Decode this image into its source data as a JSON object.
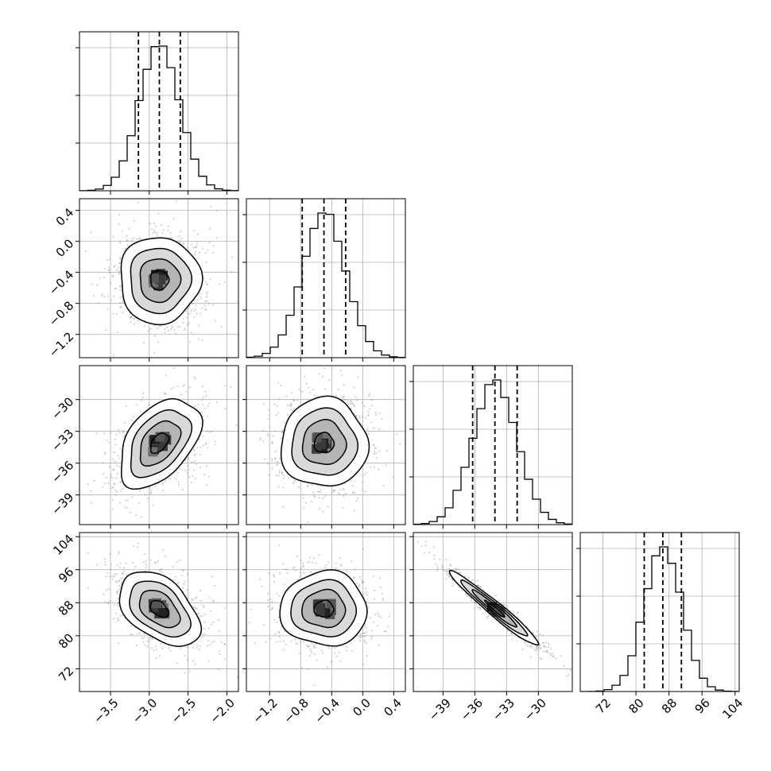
{
  "chart_data": {
    "type": "corner",
    "grid": true,
    "parameters": [
      {
        "range": [
          -3.9,
          -1.85
        ],
        "ticks": [
          -3.5,
          -3.0,
          -2.5,
          -2.0
        ],
        "tick_labels": [
          "−3.5",
          "−3.0",
          "−2.5",
          "−2.0"
        ],
        "quantiles": [
          -3.14,
          -2.87,
          -2.6
        ],
        "mean": -2.87,
        "sd": 0.26
      },
      {
        "range": [
          -1.5,
          0.55
        ],
        "ticks": [
          -1.2,
          -0.8,
          -0.4,
          0.0,
          0.4
        ],
        "tick_labels": [
          "−1.2",
          "−0.8",
          "−0.4",
          "0.0",
          "0.4"
        ],
        "quantiles": [
          -0.78,
          -0.5,
          -0.22
        ],
        "mean": -0.5,
        "sd": 0.28
      },
      {
        "range": [
          -41.8,
          -26.8
        ],
        "ticks": [
          -39,
          -36,
          -33,
          -30
        ],
        "tick_labels": [
          "−39",
          "−36",
          "−33",
          "−30"
        ],
        "quantiles": [
          -36.2,
          -34.1,
          -32.0
        ],
        "mean": -34.1,
        "sd": 2.1
      },
      {
        "range": [
          66.5,
          105
        ],
        "ticks": [
          72,
          80,
          88,
          96,
          104
        ],
        "tick_labels": [
          "72",
          "80",
          "88",
          "96",
          "104"
        ],
        "quantiles": [
          82.0,
          86.5,
          91.0
        ],
        "mean": 86.5,
        "sd": 4.5
      }
    ],
    "correlations": [
      {
        "pair": [
          0,
          1
        ],
        "rho": 0.0
      },
      {
        "pair": [
          0,
          2
        ],
        "rho": 0.45
      },
      {
        "pair": [
          1,
          2
        ],
        "rho": 0.0
      },
      {
        "pair": [
          0,
          3
        ],
        "rho": -0.45
      },
      {
        "pair": [
          1,
          3
        ],
        "rho": 0.0
      },
      {
        "pair": [
          2,
          3
        ],
        "rho": -0.97
      }
    ],
    "contour_levels_sigma": [
      0.5,
      1.0,
      1.5,
      2.0
    ]
  }
}
